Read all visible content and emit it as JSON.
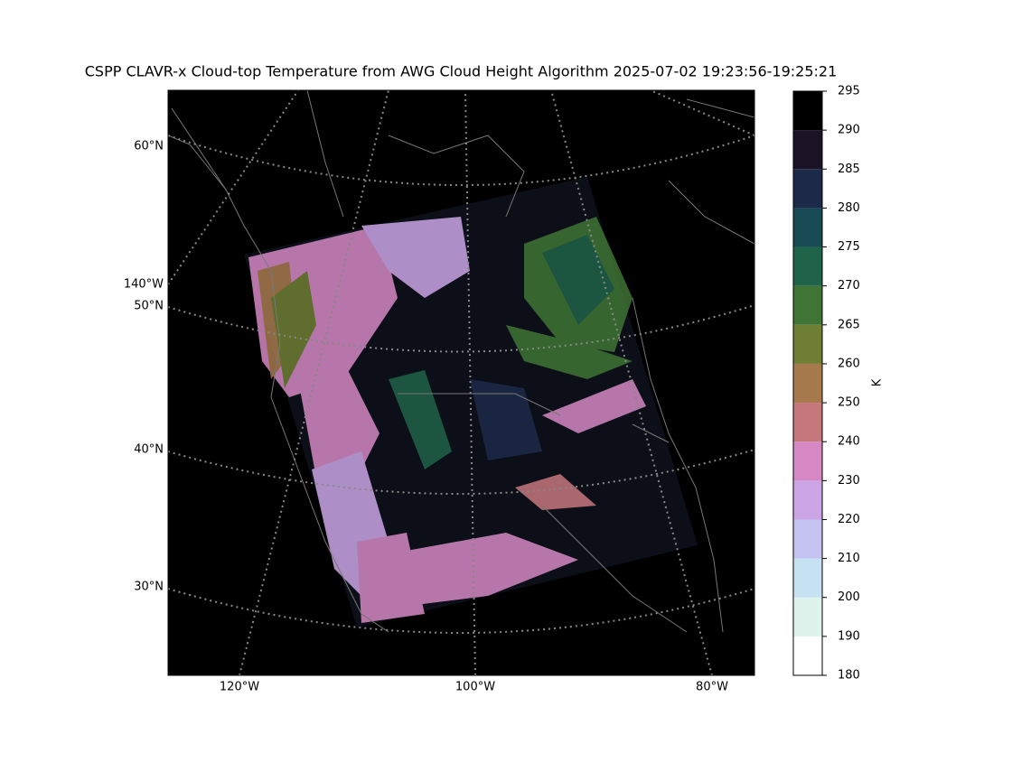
{
  "map": {
    "title": "CSPP CLAVR-x Cloud-top Temperature from AWG Cloud Height Algorithm 2025-07-02 19:23:56-19:25:21",
    "lat_labels": [
      "60°N",
      "50°N",
      "40°N",
      "30°N"
    ],
    "lon_labels_left": [
      "140°W"
    ],
    "lon_labels_bottom": [
      "120°W",
      "100°W",
      "80°W"
    ],
    "colorbar": {
      "label": "K",
      "ticks": [
        180,
        190,
        200,
        210,
        220,
        230,
        240,
        250,
        260,
        265,
        270,
        275,
        280,
        285,
        290,
        295
      ],
      "colors": [
        "#ffffff",
        "#def3ec",
        "#c6e2f2",
        "#c4c3f1",
        "#cba5e5",
        "#d588c3",
        "#c6777c",
        "#a67a4c",
        "#6e7e33",
        "#3f7434",
        "#1f6349",
        "#174a52",
        "#1d2949",
        "#1c1226",
        "#000000"
      ]
    }
  }
}
